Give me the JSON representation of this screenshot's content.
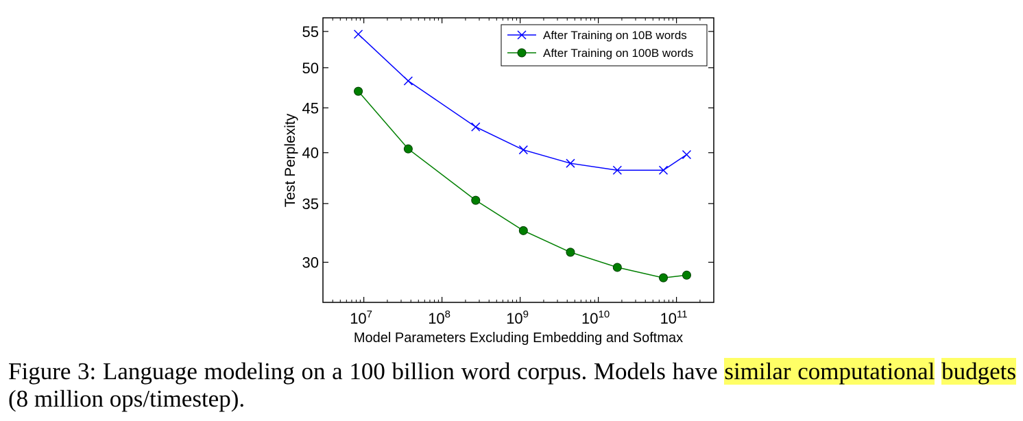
{
  "chart_data": {
    "type": "line",
    "title": "",
    "xlabel": "Model Parameters Excluding Embedding and Softmax",
    "ylabel": "Test Perplexity",
    "xscale": "log",
    "yscale": "log",
    "xlim": [
      3000000,
      300000000000
    ],
    "ylim": [
      27,
      57
    ],
    "x_ticks": [
      {
        "value": 10000000,
        "base": "10",
        "exp": "7"
      },
      {
        "value": 100000000,
        "base": "10",
        "exp": "8"
      },
      {
        "value": 1000000000,
        "base": "10",
        "exp": "9"
      },
      {
        "value": 10000000000,
        "base": "10",
        "exp": "10"
      },
      {
        "value": 100000000000,
        "base": "10",
        "exp": "11"
      }
    ],
    "y_ticks": [
      30,
      35,
      40,
      45,
      50,
      55
    ],
    "legend_position": "top-right",
    "series": [
      {
        "name": "After Training on 10B words",
        "color": "#0000ff",
        "marker": "x",
        "x": [
          8500000,
          37000000,
          270000000,
          1100000000,
          4400000000,
          17500000000,
          68000000000,
          135000000000
        ],
        "y": [
          54.6,
          48.3,
          42.8,
          40.3,
          38.9,
          38.2,
          38.2,
          39.8
        ]
      },
      {
        "name": "After Training on 100B words",
        "color": "#007f00",
        "marker": "o",
        "x": [
          8500000,
          37000000,
          270000000,
          1100000000,
          4400000000,
          17500000000,
          68000000000,
          135000000000
        ],
        "y": [
          47.0,
          40.4,
          35.3,
          32.6,
          30.8,
          29.6,
          28.8,
          29.0
        ]
      }
    ]
  },
  "caption": {
    "prefix": "Figure 3:  Language modeling on a 100 billion word corpus.  Models have ",
    "highlight1": "similar computational",
    "highlight2": "budgets",
    "suffix": " (8 million ops/timestep)."
  },
  "highlight_color": "#ffff66"
}
